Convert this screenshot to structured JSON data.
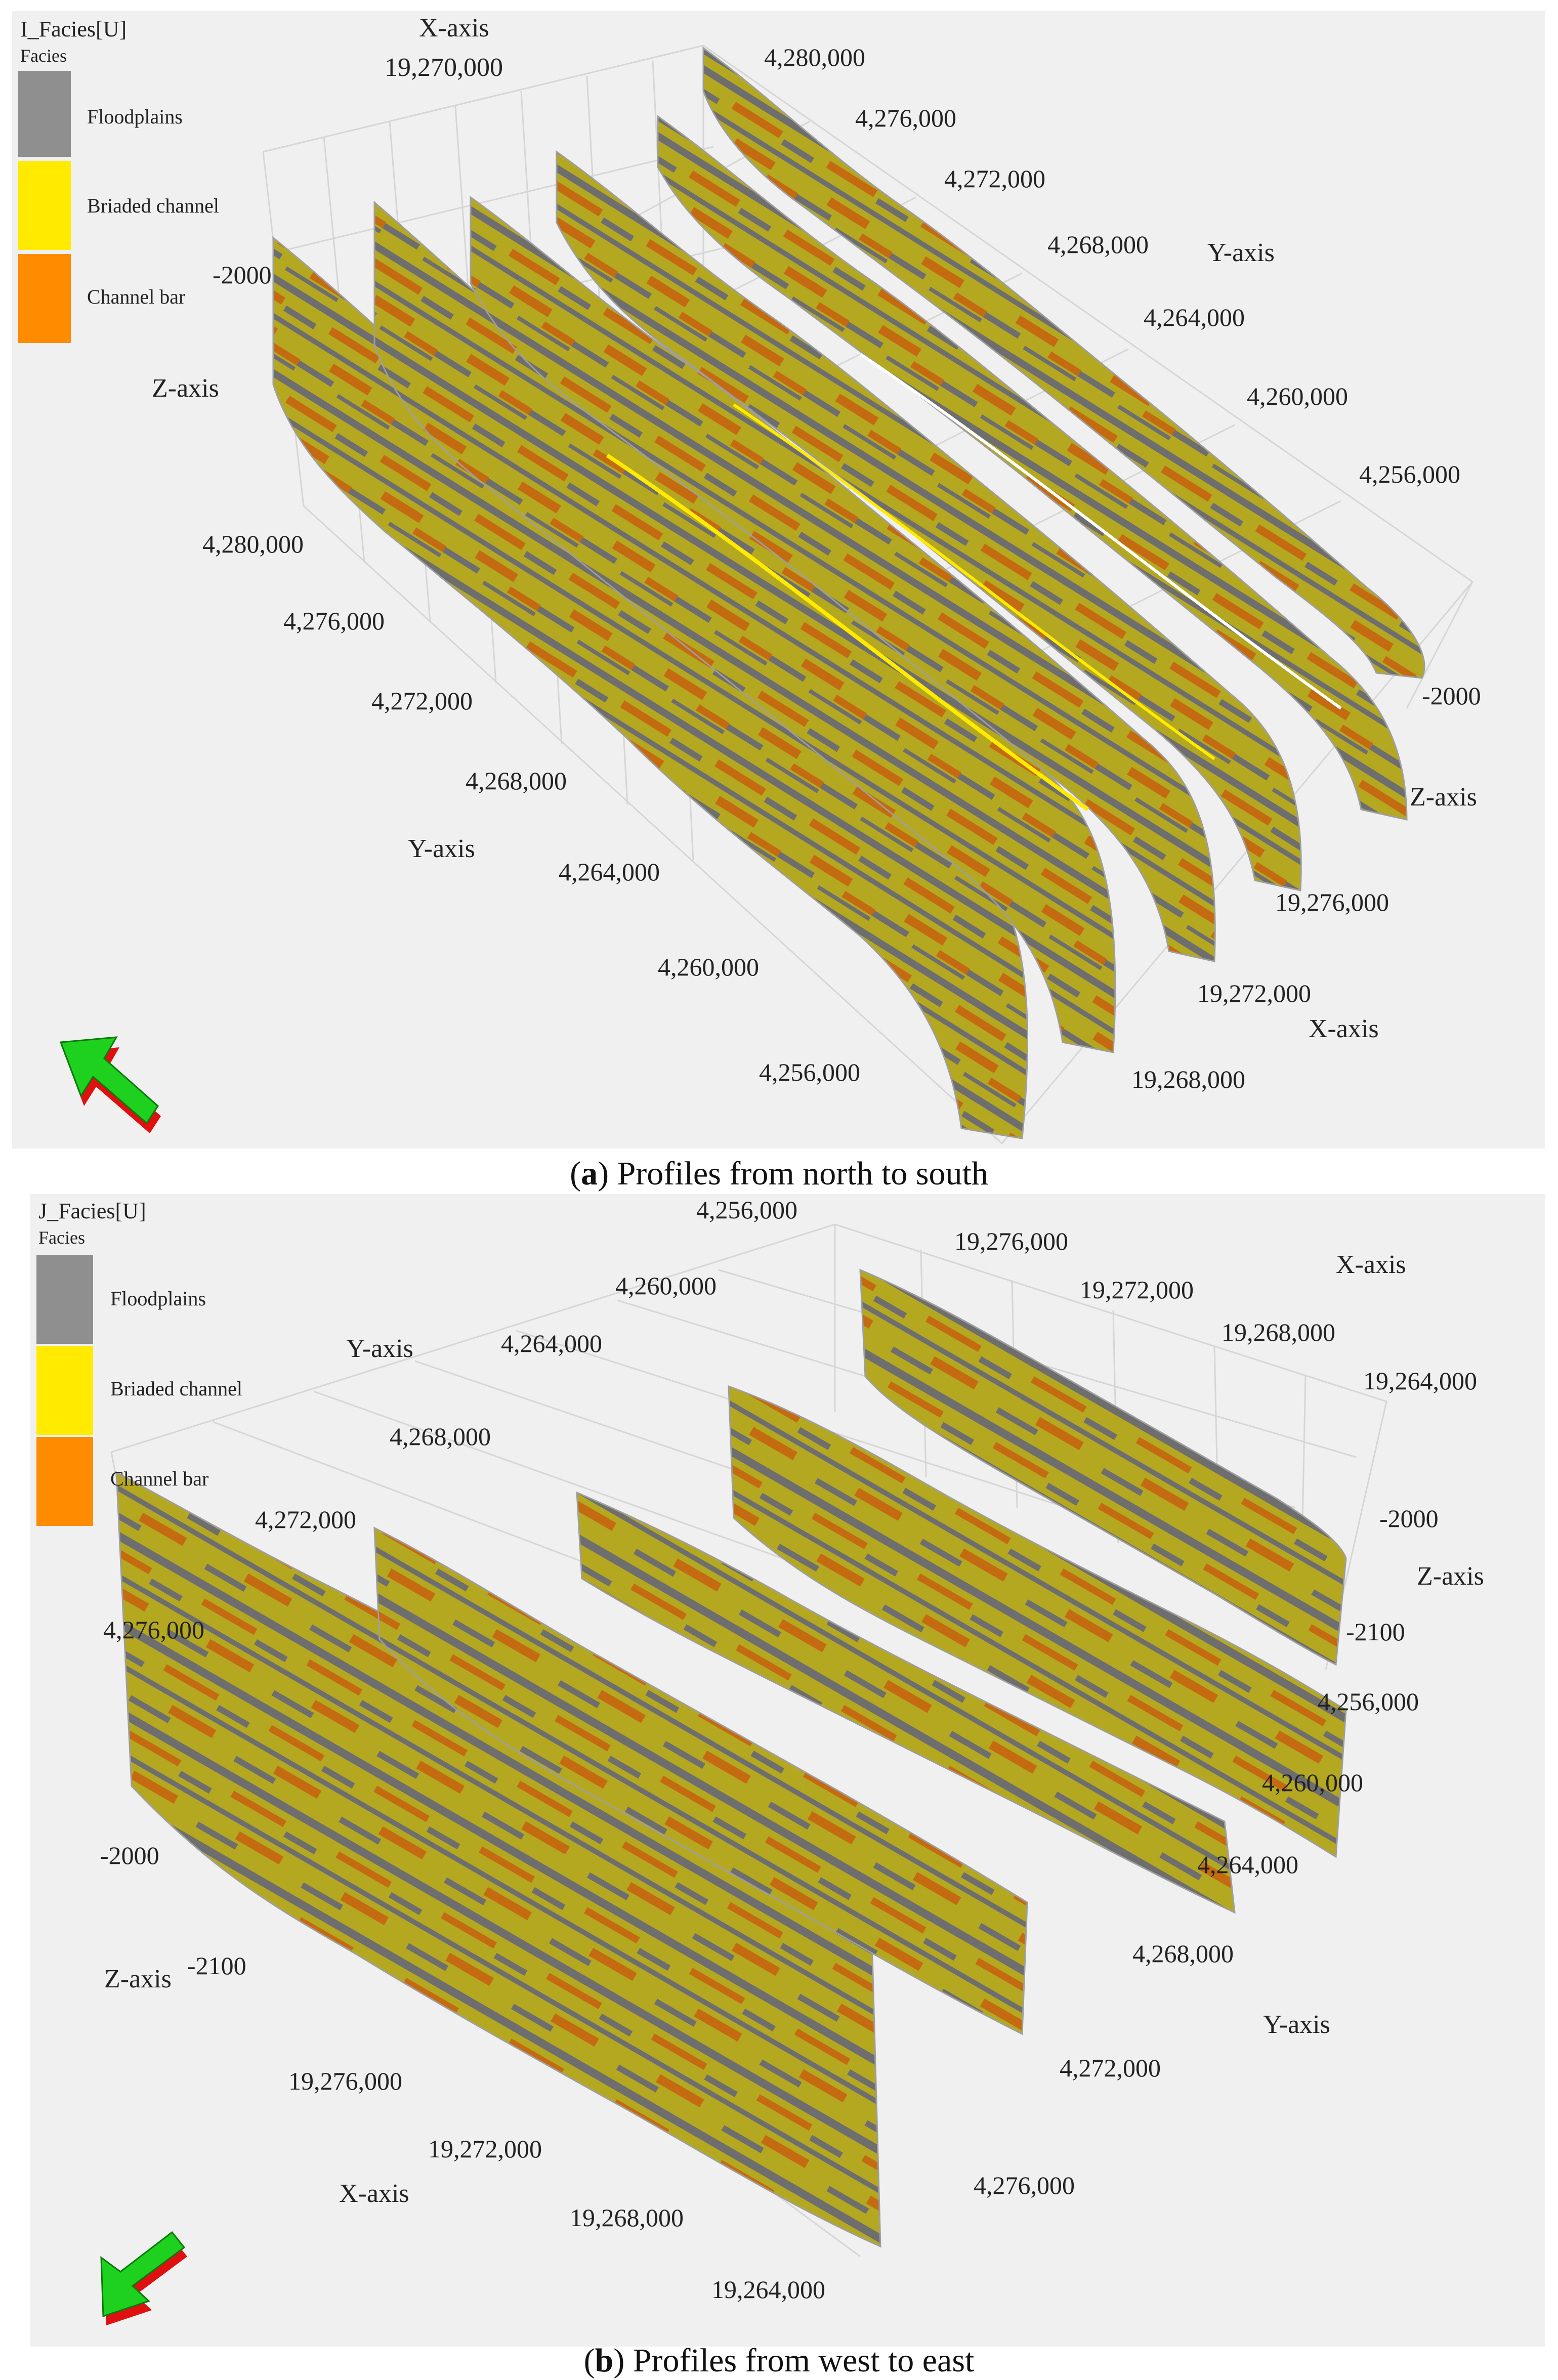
{
  "colors": {
    "background": "#f0f0f0",
    "grid": "#d6d6d6",
    "tick": "#2a2a2a",
    "floodplains": "#8f8f8f",
    "floodplains_dark": "#6e6e6e",
    "braided_channel": "#ffea00",
    "braided_channel_olive": "#b5a821",
    "channel_bar": "#ff8c00",
    "channel_bar_dark": "#c46b12",
    "arrow_green": "#1fd11f",
    "arrow_red": "#e01010"
  },
  "legend_items": [
    "Floodplains",
    "Briaded channel",
    "Channel bar"
  ],
  "panels": [
    {
      "id": "a",
      "title": "I_Facies[U]",
      "legend_heading": "Facies",
      "caption_letter": "a",
      "caption_text": "Profiles from north to south",
      "x_axis_label": "X-axis",
      "y_axis_label": "Y-axis",
      "z_axis_label": "Z-axis",
      "top_x_tick": "19,270,000",
      "top_y_ticks": [
        "4,280,000",
        "4,276,000",
        "4,272,000",
        "4,268,000",
        "4,264,000",
        "4,260,000",
        "4,256,000"
      ],
      "left_y_ticks": [
        "4,280,000",
        "4,276,000",
        "4,272,000",
        "4,268,000",
        "4,264,000",
        "4,260,000",
        "4,256,000"
      ],
      "bottom_x_ticks": [
        "19,276,000",
        "19,272,000",
        "19,268,000"
      ],
      "z_ticks": [
        "-2000",
        "-2000"
      ]
    },
    {
      "id": "b",
      "title": "J_Facies[U]",
      "legend_heading": "Facies",
      "caption_letter": "b",
      "caption_text": "Profiles from west to east",
      "x_axis_label": "X-axis",
      "y_axis_label": "Y-axis",
      "z_axis_label": "Z-axis",
      "top_y_ticks": [
        "4,256,000",
        "4,260,000",
        "4,264,000",
        "4,268,000",
        "4,272,000",
        "4,276,000"
      ],
      "top_x_ticks": [
        "19,276,000",
        "19,272,000",
        "19,268,000",
        "19,264,000"
      ],
      "right_y_ticks": [
        "4,256,000",
        "4,260,000",
        "4,264,000",
        "4,268,000",
        "4,272,000",
        "4,276,000"
      ],
      "bottom_x_ticks": [
        "19,276,000",
        "19,272,000",
        "19,268,000",
        "19,264,000"
      ],
      "z_ticks_right": [
        "-2000",
        "-2100"
      ],
      "z_ticks_left": [
        "-2000",
        "-2100"
      ]
    }
  ]
}
